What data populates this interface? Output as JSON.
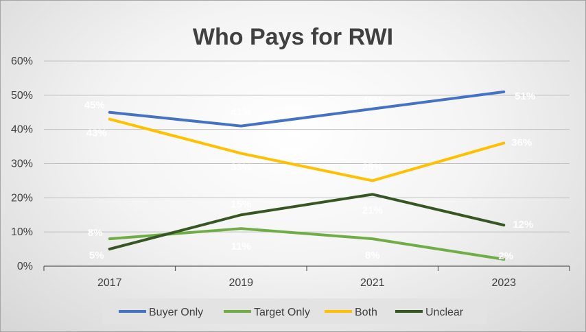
{
  "chart_data": {
    "type": "line",
    "title": "Who Pays for RWI",
    "xlabel": "",
    "ylabel": "",
    "categories": [
      "2017",
      "2019",
      "2021",
      "2023"
    ],
    "y_ticks": [
      "0%",
      "10%",
      "20%",
      "30%",
      "40%",
      "50%",
      "60%"
    ],
    "ylim": [
      0,
      60
    ],
    "grid": true,
    "legend_position": "bottom",
    "series": [
      {
        "name": "Buyer Only",
        "color": "#4472c4",
        "values": [
          45,
          41,
          46,
          51
        ],
        "labels": [
          "45%",
          "41%",
          "46%",
          "51%"
        ]
      },
      {
        "name": "Target Only",
        "color": "#70ad47",
        "values": [
          8,
          11,
          8,
          2
        ],
        "labels": [
          "8%",
          "11%",
          "8%",
          "2%"
        ]
      },
      {
        "name": "Both",
        "color": "#ffc000",
        "values": [
          43,
          33,
          25,
          36
        ],
        "labels": [
          "43%",
          "33%",
          "25%",
          "36%"
        ]
      },
      {
        "name": "Unclear",
        "color": "#375623",
        "values": [
          5,
          15,
          21,
          12
        ],
        "labels": [
          "5%",
          "15%",
          "21%",
          "12%"
        ]
      }
    ]
  }
}
